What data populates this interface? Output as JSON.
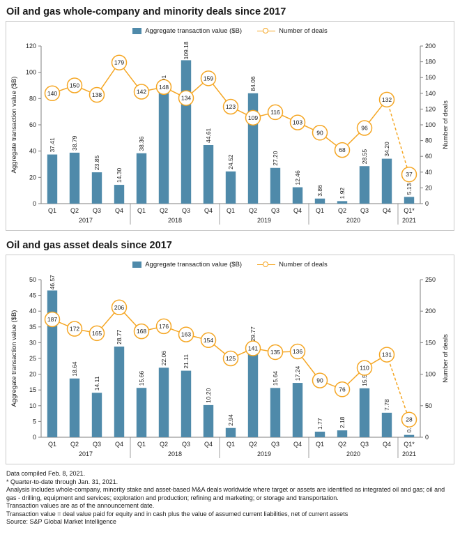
{
  "colors": {
    "bar": "#4f8aaa",
    "line": "#f5a623",
    "axis": "#7f7f7f",
    "text": "#1a1a1a"
  },
  "chart_data": [
    {
      "type": "bar+line",
      "title": "Oil and gas whole-company and minority deals since 2017",
      "categories": [
        "Q1",
        "Q2",
        "Q3",
        "Q4",
        "Q1",
        "Q2",
        "Q3",
        "Q4",
        "Q1",
        "Q2",
        "Q3",
        "Q4",
        "Q1",
        "Q2",
        "Q3",
        "Q4",
        "Q1*"
      ],
      "year_groups": [
        {
          "label": "2017",
          "count": 4
        },
        {
          "label": "2018",
          "count": 4
        },
        {
          "label": "2019",
          "count": 4
        },
        {
          "label": "2020",
          "count": 4
        },
        {
          "label": "2021",
          "count": 1
        }
      ],
      "series": [
        {
          "name": "Aggregate transaction value ($B)",
          "type": "bar",
          "axis": "left",
          "values": [
            37.41,
            38.79,
            23.85,
            14.3,
            38.36,
            84.91,
            109.18,
            44.61,
            24.52,
            84.06,
            27.2,
            12.46,
            3.86,
            1.92,
            28.55,
            34.2,
            5.13
          ]
        },
        {
          "name": "Number of deals",
          "type": "line",
          "axis": "right",
          "last_segment_dashed": true,
          "values": [
            140,
            150,
            138,
            179,
            142,
            148,
            134,
            159,
            123,
            109,
            116,
            103,
            90,
            68,
            96,
            132,
            37
          ]
        }
      ],
      "left_axis": {
        "label": "Aggregate transaction value ($B)",
        "min": 0,
        "max": 120,
        "step": 20
      },
      "right_axis": {
        "label": "Number of deals",
        "min": 0,
        "max": 200,
        "step": 20
      },
      "grid": false,
      "legend_position": "top-center"
    },
    {
      "type": "bar+line",
      "title": "Oil and gas asset deals since 2017",
      "categories": [
        "Q1",
        "Q2",
        "Q3",
        "Q4",
        "Q1",
        "Q2",
        "Q3",
        "Q4",
        "Q1",
        "Q2",
        "Q3",
        "Q4",
        "Q1",
        "Q2",
        "Q3",
        "Q4",
        "Q1*"
      ],
      "year_groups": [
        {
          "label": "2017",
          "count": 4
        },
        {
          "label": "2018",
          "count": 4
        },
        {
          "label": "2019",
          "count": 4
        },
        {
          "label": "2020",
          "count": 4
        },
        {
          "label": "2021",
          "count": 1
        }
      ],
      "series": [
        {
          "name": "Aggregate transaction value ($B)",
          "type": "bar",
          "axis": "left",
          "values": [
            46.57,
            18.64,
            14.11,
            28.77,
            15.66,
            22.06,
            21.11,
            10.2,
            2.94,
            29.77,
            15.64,
            17.24,
            1.77,
            2.18,
            15.52,
            7.78,
            0.74
          ]
        },
        {
          "name": "Number of deals",
          "type": "line",
          "axis": "right",
          "last_segment_dashed": true,
          "values": [
            187,
            172,
            165,
            206,
            168,
            176,
            163,
            154,
            125,
            141,
            135,
            136,
            90,
            76,
            110,
            131,
            28
          ]
        }
      ],
      "left_axis": {
        "label": "Aggregate transaction value ($B)",
        "min": 0,
        "max": 50,
        "step": 5
      },
      "right_axis": {
        "label": "Number of deals",
        "min": 0,
        "max": 250,
        "step": 50
      },
      "grid": false,
      "legend_position": "top-center"
    }
  ],
  "footnotes": [
    "Data compiled Feb. 8, 2021.",
    "* Quarter-to-date through Jan. 31, 2021.",
    "Analysis includes whole-company, minority stake and asset-based M&A deals worldwide where target or assets are identified as integrated oil and gas; oil and gas - drilling, equipment and services; exploration and production; refining and marketing; or storage and transportation.",
    "Transaction values are as of the announcement date.",
    "Transaction value = deal value paid for equity and in cash plus the value of assumed current liabilities, net of current assets",
    "Source: S&P Global Market Intelligence"
  ]
}
